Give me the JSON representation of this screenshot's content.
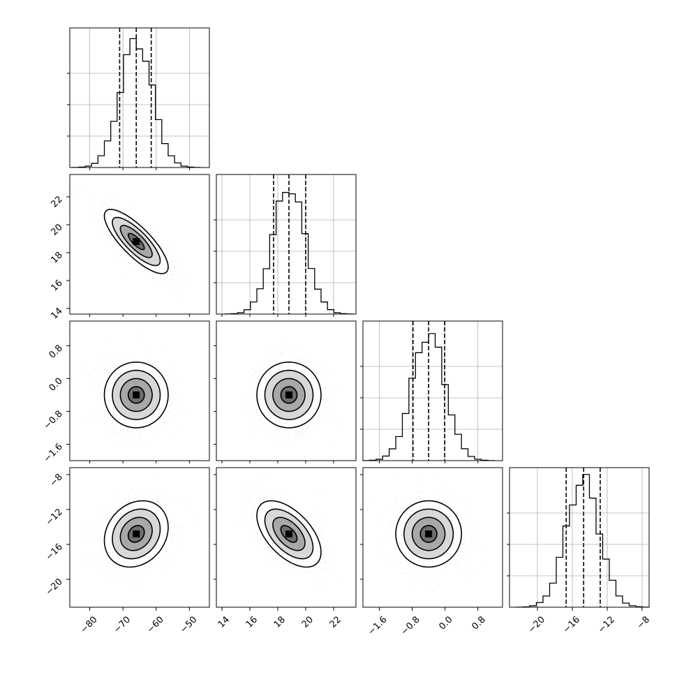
{
  "chart_data": {
    "type": "corner",
    "title": "",
    "parameters": [
      {
        "label": "",
        "range": [
          -86,
          -44
        ],
        "ticks": [
          -80,
          -70,
          -60,
          -50
        ],
        "tick_labels": [
          "−80",
          "−70",
          "−60",
          "−50"
        ],
        "mean": -66,
        "sd": 4.8,
        "q": [
          -71,
          -66,
          -61.5
        ]
      },
      {
        "label": "",
        "range": [
          13.6,
          23.6
        ],
        "ticks": [
          14,
          16,
          18,
          20,
          22
        ],
        "tick_labels": [
          "14",
          "16",
          "18",
          "20",
          "22"
        ],
        "mean": 18.8,
        "sd": 1.15,
        "q": [
          17.7,
          18.8,
          20.0
        ]
      },
      {
        "label": "",
        "range": [
          -2.0,
          1.4
        ],
        "ticks": [
          -1.6,
          -0.8,
          0.0,
          0.8
        ],
        "tick_labels": [
          "−1.6",
          "−0.8",
          "0.0",
          "0.8"
        ],
        "mean": -0.4,
        "sd": 0.4,
        "q": [
          -0.78,
          -0.4,
          -0.01
        ]
      },
      {
        "label": "",
        "range": [
          -23.2,
          -7.2
        ],
        "ticks": [
          -20,
          -16,
          -12,
          -8
        ],
        "tick_labels": [
          "−20",
          "−16",
          "−12",
          "−8"
        ],
        "mean": -14.8,
        "sd": 1.9,
        "q": [
          -16.7,
          -14.7,
          -12.8
        ]
      }
    ],
    "correlations": [
      [
        1.0,
        -0.8,
        0.0,
        0.2
      ],
      [
        -0.8,
        1.0,
        0.0,
        -0.55
      ],
      [
        0.0,
        0.0,
        1.0,
        0.0
      ],
      [
        0.2,
        -0.55,
        0.0,
        1.0
      ]
    ],
    "quantile_line_style": "dashed",
    "contour_levels_sigma": [
      0.5,
      1.0,
      1.5,
      2.0
    ],
    "grid": true
  }
}
